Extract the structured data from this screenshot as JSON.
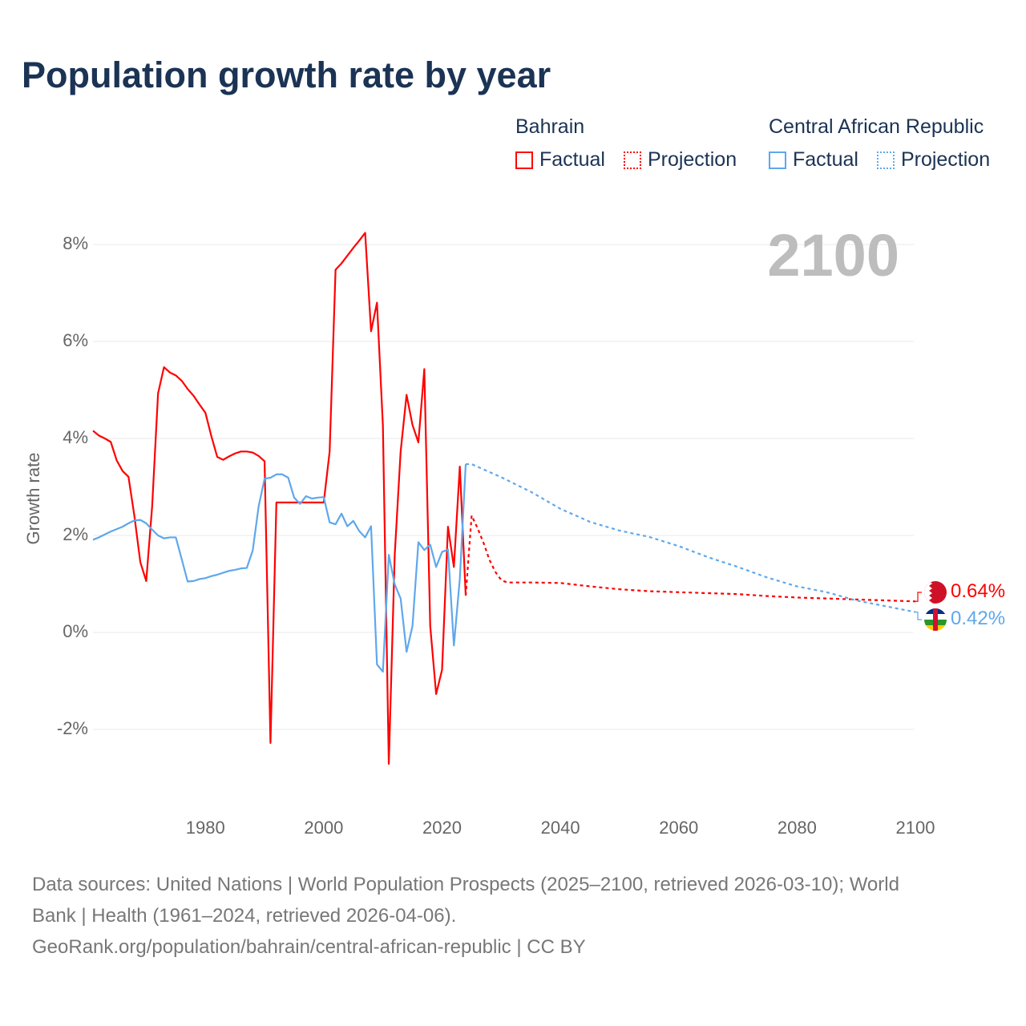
{
  "title": "Population growth rate by year",
  "current_year": "2100",
  "legend": {
    "groups": [
      {
        "name": "Bahrain",
        "color": "#ff0000",
        "factual": "Factual",
        "projection": "Projection"
      },
      {
        "name": "Central African Republic",
        "color": "#5ea8ec",
        "factual": "Factual",
        "projection": "Projection"
      }
    ]
  },
  "end_labels": {
    "bahrain": "0.64%",
    "car": "0.42%"
  },
  "footer": {
    "line1": "Data sources: United Nations | World Population Prospects (2025–2100, retrieved 2026-03-10); World",
    "line2": "Bank | Health (1961–2024, retrieved 2026-04-06).",
    "line3": "GeoRank.org/population/bahrain/central-african-republic | CC BY"
  },
  "chart_data": {
    "type": "line",
    "title": "Population growth rate by year",
    "xlabel": "",
    "ylabel": "Growth rate",
    "xlim": [
      1961,
      2100
    ],
    "ylim": [
      -3,
      9
    ],
    "x_ticks": [
      1980,
      2000,
      2020,
      2040,
      2060,
      2080,
      2100
    ],
    "x_tick_labels": [
      "1980",
      "2000",
      "2020",
      "2040",
      "2060",
      "2080",
      "2100"
    ],
    "y_ticks": [
      -2,
      0,
      2,
      4,
      6,
      8
    ],
    "y_tick_labels": [
      "-2%",
      "0%",
      "2%",
      "4%",
      "6%",
      "8%"
    ],
    "grid": true,
    "series": [
      {
        "name": "Bahrain Factual",
        "color": "#ff0000",
        "style": "solid",
        "x": [
          1961,
          1962,
          1963,
          1964,
          1965,
          1966,
          1967,
          1968,
          1969,
          1970,
          1971,
          1972,
          1973,
          1974,
          1975,
          1976,
          1977,
          1978,
          1979,
          1980,
          1981,
          1982,
          1983,
          1984,
          1985,
          1986,
          1987,
          1988,
          1989,
          1990,
          1991,
          1992,
          1993,
          1994,
          1995,
          1996,
          1997,
          1998,
          1999,
          2000,
          2001,
          2002,
          2003,
          2004,
          2005,
          2006,
          2007,
          2008,
          2009,
          2010,
          2011,
          2012,
          2013,
          2014,
          2015,
          2016,
          2017,
          2018,
          2019,
          2020,
          2021,
          2022,
          2023,
          2024
        ],
        "y": [
          4.16,
          4.06,
          4.0,
          3.93,
          3.55,
          3.33,
          3.21,
          2.4,
          1.45,
          1.06,
          2.6,
          4.93,
          5.47,
          5.36,
          5.3,
          5.19,
          5.02,
          4.88,
          4.7,
          4.53,
          4.05,
          3.62,
          3.56,
          3.63,
          3.69,
          3.73,
          3.73,
          3.71,
          3.64,
          3.53,
          -2.28,
          2.68,
          2.68,
          2.68,
          2.68,
          2.68,
          2.68,
          2.68,
          2.68,
          2.68,
          3.73,
          7.48,
          7.61,
          7.77,
          7.93,
          8.08,
          8.24,
          6.21,
          6.8,
          4.27,
          -2.71,
          1.6,
          3.73,
          4.9,
          4.28,
          3.92,
          5.43,
          0.13,
          -1.27,
          -0.77,
          2.18,
          1.35,
          3.42,
          0.76
        ]
      },
      {
        "name": "Bahrain Projection",
        "color": "#ff0000",
        "style": "dotted",
        "x": [
          2024,
          2025,
          2026,
          2027,
          2028,
          2029,
          2030,
          2031,
          2035,
          2040,
          2045,
          2050,
          2055,
          2060,
          2065,
          2070,
          2075,
          2080,
          2085,
          2090,
          2095,
          2100
        ],
        "y": [
          0.76,
          2.41,
          2.15,
          1.85,
          1.5,
          1.25,
          1.08,
          1.03,
          1.03,
          1.02,
          0.95,
          0.89,
          0.85,
          0.83,
          0.81,
          0.79,
          0.75,
          0.72,
          0.7,
          0.68,
          0.66,
          0.64
        ]
      },
      {
        "name": "Central African Republic Factual",
        "color": "#5ea8ec",
        "style": "solid",
        "x": [
          1961,
          1962,
          1963,
          1964,
          1965,
          1966,
          1967,
          1968,
          1969,
          1970,
          1971,
          1972,
          1973,
          1974,
          1975,
          1976,
          1977,
          1978,
          1979,
          1980,
          1981,
          1982,
          1983,
          1984,
          1985,
          1986,
          1987,
          1988,
          1989,
          1990,
          1991,
          1992,
          1993,
          1994,
          1995,
          1996,
          1997,
          1998,
          1999,
          2000,
          2001,
          2002,
          2003,
          2004,
          2005,
          2006,
          2007,
          2008,
          2009,
          2010,
          2011,
          2012,
          2013,
          2014,
          2015,
          2016,
          2017,
          2018,
          2019,
          2020,
          2021,
          2022,
          2023,
          2024
        ],
        "y": [
          1.91,
          1.96,
          2.02,
          2.08,
          2.13,
          2.18,
          2.25,
          2.31,
          2.32,
          2.25,
          2.12,
          2.0,
          1.94,
          1.96,
          1.96,
          1.51,
          1.05,
          1.06,
          1.1,
          1.12,
          1.16,
          1.19,
          1.23,
          1.27,
          1.29,
          1.32,
          1.33,
          1.69,
          2.6,
          3.17,
          3.19,
          3.26,
          3.26,
          3.19,
          2.78,
          2.65,
          2.81,
          2.76,
          2.78,
          2.79,
          2.27,
          2.23,
          2.45,
          2.19,
          2.3,
          2.09,
          1.96,
          2.19,
          -0.66,
          -0.81,
          1.6,
          0.99,
          0.7,
          -0.4,
          0.13,
          1.86,
          1.7,
          1.81,
          1.35,
          1.66,
          1.71,
          -0.27,
          1.1,
          3.47
        ]
      },
      {
        "name": "Central African Republic Projection",
        "color": "#5ea8ec",
        "style": "dotted",
        "x": [
          2024,
          2025,
          2030,
          2035,
          2040,
          2045,
          2050,
          2055,
          2060,
          2065,
          2070,
          2075,
          2080,
          2085,
          2090,
          2095,
          2100
        ],
        "y": [
          3.47,
          3.47,
          3.2,
          2.9,
          2.55,
          2.28,
          2.1,
          1.97,
          1.78,
          1.55,
          1.35,
          1.13,
          0.95,
          0.83,
          0.66,
          0.54,
          0.42
        ]
      }
    ]
  }
}
